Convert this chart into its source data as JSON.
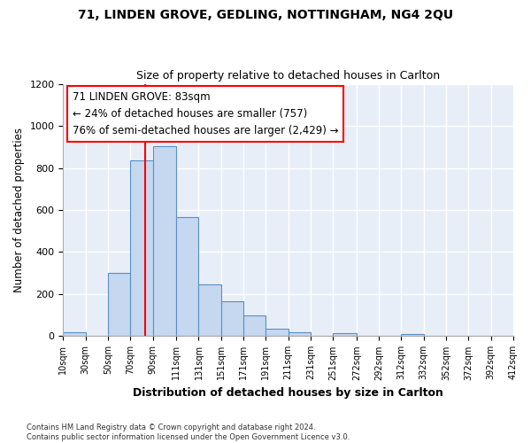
{
  "title1": "71, LINDEN GROVE, GEDLING, NOTTINGHAM, NG4 2QU",
  "title2": "Size of property relative to detached houses in Carlton",
  "xlabel": "Distribution of detached houses by size in Carlton",
  "ylabel": "Number of detached properties",
  "footer": "Contains HM Land Registry data © Crown copyright and database right 2024.\nContains public sector information licensed under the Open Government Licence v3.0.",
  "annotation_line1": "71 LINDEN GROVE: 83sqm",
  "annotation_line2": "← 24% of detached houses are smaller (757)",
  "annotation_line3": "76% of semi-detached houses are larger (2,429) →",
  "property_size": 83,
  "bins": [
    10,
    30,
    50,
    70,
    90,
    111,
    131,
    151,
    171,
    191,
    211,
    231,
    251,
    272,
    292,
    312,
    332,
    352,
    372,
    392,
    412
  ],
  "values": [
    20,
    0,
    300,
    835,
    905,
    565,
    245,
    165,
    100,
    35,
    20,
    0,
    15,
    0,
    0,
    10,
    0,
    0,
    0,
    0
  ],
  "bar_color": "#c5d8f0",
  "bar_edge_color": "#5a8fc2",
  "vline_color": "red",
  "vline_x": 83,
  "ylim": [
    0,
    1200
  ],
  "yticks": [
    0,
    200,
    400,
    600,
    800,
    1000,
    1200
  ],
  "bg_color": "#e8eef8",
  "grid_color": "white",
  "title1_fontsize": 10,
  "title2_fontsize": 9,
  "xlabel_fontsize": 9,
  "ylabel_fontsize": 8.5
}
